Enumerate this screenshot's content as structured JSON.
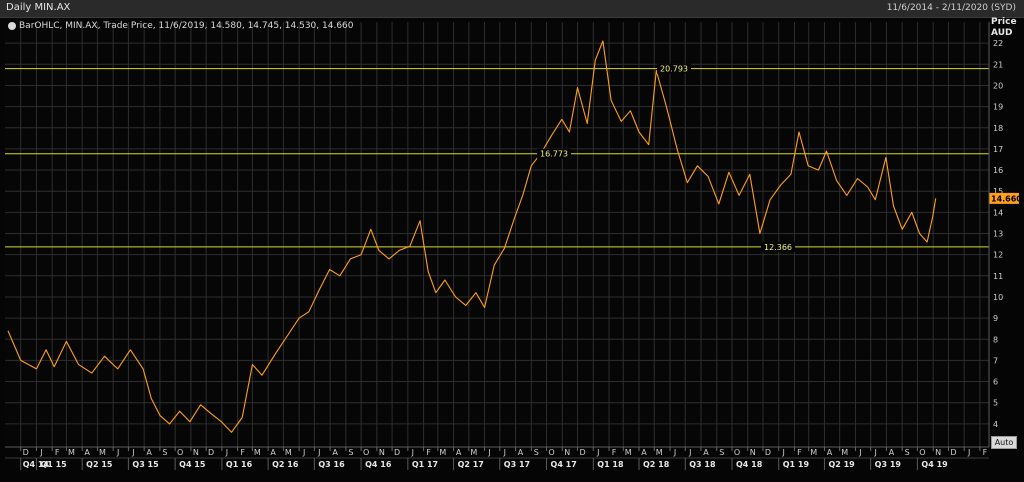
{
  "window": {
    "title": "Daily MIN.AX",
    "date_range": "11/6/2014 - 2/11/2020 (SYD)"
  },
  "legend": {
    "text": "BarOHLC, MIN.AX, Trade Price, 11/6/2019, 14.580, 14.745, 14.530, 14.660"
  },
  "y_unit": {
    "line1": "Price",
    "line2": "AUD"
  },
  "auto_button": "Auto",
  "colors": {
    "background": "#050505",
    "price": "#ff9f1a",
    "grid": "#2e2e2e",
    "hlines": "#d9d92a",
    "last_label_bg": "#ff9f1a"
  },
  "chart_data": {
    "type": "line",
    "title": "Daily MIN.AX",
    "ylabel": "Price AUD",
    "ylim": [
      3,
      23
    ],
    "y_ticks": [
      4,
      5,
      6,
      7,
      8,
      9,
      10,
      11,
      12,
      13,
      14,
      15,
      16,
      17,
      18,
      19,
      20,
      21,
      22
    ],
    "x_month_labels": [
      "D",
      "J",
      "F",
      "M",
      "A",
      "M",
      "J",
      "J",
      "A",
      "S",
      "O",
      "N",
      "D",
      "J",
      "F",
      "M",
      "A",
      "M",
      "J",
      "J",
      "A",
      "S",
      "O",
      "N",
      "D",
      "J",
      "F",
      "M",
      "A",
      "M",
      "J",
      "J",
      "A",
      "S",
      "O",
      "N",
      "D",
      "J",
      "F",
      "M",
      "A",
      "M",
      "J",
      "J",
      "A",
      "S",
      "O",
      "N",
      "D",
      "J",
      "F",
      "M",
      "A",
      "M",
      "J",
      "J",
      "A",
      "S",
      "O",
      "N",
      "D",
      "J",
      "F"
    ],
    "x_quarter_labels": [
      "Q4 14",
      "Q1 15",
      "Q2 15",
      "Q3 15",
      "Q4 15",
      "Q1 16",
      "Q2 16",
      "Q3 16",
      "Q4 16",
      "Q1 17",
      "Q2 17",
      "Q3 17",
      "Q4 17",
      "Q1 18",
      "Q2 18",
      "Q3 18",
      "Q4 18",
      "Q1 19",
      "Q2 19",
      "Q3 19",
      "Q4 19"
    ],
    "horizontal_lines": [
      {
        "label": "20.793",
        "value": 20.793
      },
      {
        "label": "16.773",
        "value": 16.773
      },
      {
        "label": "12.366",
        "value": 12.366
      }
    ],
    "last_value": 14.66,
    "last_label": "14.660",
    "series": [
      {
        "name": "MIN.AX",
        "points": [
          [
            "2014-11-06",
            8.4
          ],
          [
            "2014-12-01",
            7.0
          ],
          [
            "2015-01-01",
            6.6
          ],
          [
            "2015-01-20",
            7.5
          ],
          [
            "2015-02-05",
            6.7
          ],
          [
            "2015-03-01",
            7.9
          ],
          [
            "2015-03-25",
            6.8
          ],
          [
            "2015-04-20",
            6.4
          ],
          [
            "2015-05-15",
            7.2
          ],
          [
            "2015-06-10",
            6.6
          ],
          [
            "2015-07-05",
            7.5
          ],
          [
            "2015-07-30",
            6.6
          ],
          [
            "2015-08-15",
            5.2
          ],
          [
            "2015-09-01",
            4.4
          ],
          [
            "2015-09-20",
            4.0
          ],
          [
            "2015-10-10",
            4.6
          ],
          [
            "2015-10-30",
            4.1
          ],
          [
            "2015-11-20",
            4.9
          ],
          [
            "2015-12-10",
            4.5
          ],
          [
            "2015-12-31",
            4.1
          ],
          [
            "2016-01-20",
            3.6
          ],
          [
            "2016-02-10",
            4.3
          ],
          [
            "2016-03-01",
            6.8
          ],
          [
            "2016-03-20",
            6.3
          ],
          [
            "2016-04-15",
            7.3
          ],
          [
            "2016-05-10",
            8.2
          ],
          [
            "2016-06-01",
            9.0
          ],
          [
            "2016-06-20",
            9.3
          ],
          [
            "2016-07-10",
            10.3
          ],
          [
            "2016-07-31",
            11.3
          ],
          [
            "2016-08-20",
            11.0
          ],
          [
            "2016-09-10",
            11.8
          ],
          [
            "2016-10-01",
            12.0
          ],
          [
            "2016-10-20",
            13.2
          ],
          [
            "2016-11-05",
            12.2
          ],
          [
            "2016-11-25",
            11.8
          ],
          [
            "2016-12-15",
            12.2
          ],
          [
            "2017-01-05",
            12.4
          ],
          [
            "2017-01-25",
            13.6
          ],
          [
            "2017-02-10",
            11.2
          ],
          [
            "2017-02-25",
            10.2
          ],
          [
            "2017-03-15",
            10.8
          ],
          [
            "2017-04-05",
            10.0
          ],
          [
            "2017-04-25",
            9.6
          ],
          [
            "2017-05-15",
            10.2
          ],
          [
            "2017-06-01",
            9.5
          ],
          [
            "2017-06-20",
            11.5
          ],
          [
            "2017-07-10",
            12.3
          ],
          [
            "2017-07-31",
            13.8
          ],
          [
            "2017-08-15",
            14.8
          ],
          [
            "2017-09-01",
            16.2
          ],
          [
            "2017-09-20",
            16.8
          ],
          [
            "2017-10-10",
            17.6
          ],
          [
            "2017-10-31",
            18.4
          ],
          [
            "2017-11-15",
            17.8
          ],
          [
            "2017-12-01",
            19.9
          ],
          [
            "2017-12-20",
            18.2
          ],
          [
            "2018-01-05",
            21.2
          ],
          [
            "2018-01-20",
            22.1
          ],
          [
            "2018-02-05",
            19.3
          ],
          [
            "2018-02-25",
            18.3
          ],
          [
            "2018-03-15",
            18.8
          ],
          [
            "2018-04-01",
            17.8
          ],
          [
            "2018-04-20",
            17.2
          ],
          [
            "2018-05-05",
            20.7
          ],
          [
            "2018-05-25",
            19.0
          ],
          [
            "2018-06-15",
            17.0
          ],
          [
            "2018-07-05",
            15.4
          ],
          [
            "2018-07-25",
            16.2
          ],
          [
            "2018-08-15",
            15.7
          ],
          [
            "2018-09-05",
            14.4
          ],
          [
            "2018-09-25",
            15.9
          ],
          [
            "2018-10-15",
            14.8
          ],
          [
            "2018-11-05",
            15.8
          ],
          [
            "2018-11-25",
            13.0
          ],
          [
            "2018-12-15",
            14.6
          ],
          [
            "2019-01-05",
            15.3
          ],
          [
            "2019-01-25",
            15.8
          ],
          [
            "2019-02-10",
            17.8
          ],
          [
            "2019-02-28",
            16.2
          ],
          [
            "2019-03-20",
            16.0
          ],
          [
            "2019-04-05",
            16.9
          ],
          [
            "2019-04-25",
            15.5
          ],
          [
            "2019-05-15",
            14.8
          ],
          [
            "2019-06-05",
            15.6
          ],
          [
            "2019-06-25",
            15.2
          ],
          [
            "2019-07-10",
            14.6
          ],
          [
            "2019-07-31",
            16.6
          ],
          [
            "2019-08-15",
            14.3
          ],
          [
            "2019-09-01",
            13.2
          ],
          [
            "2019-09-20",
            14.0
          ],
          [
            "2019-10-05",
            13.0
          ],
          [
            "2019-10-20",
            12.6
          ],
          [
            "2019-10-31",
            13.8
          ],
          [
            "2019-11-06",
            14.66
          ]
        ]
      }
    ]
  }
}
